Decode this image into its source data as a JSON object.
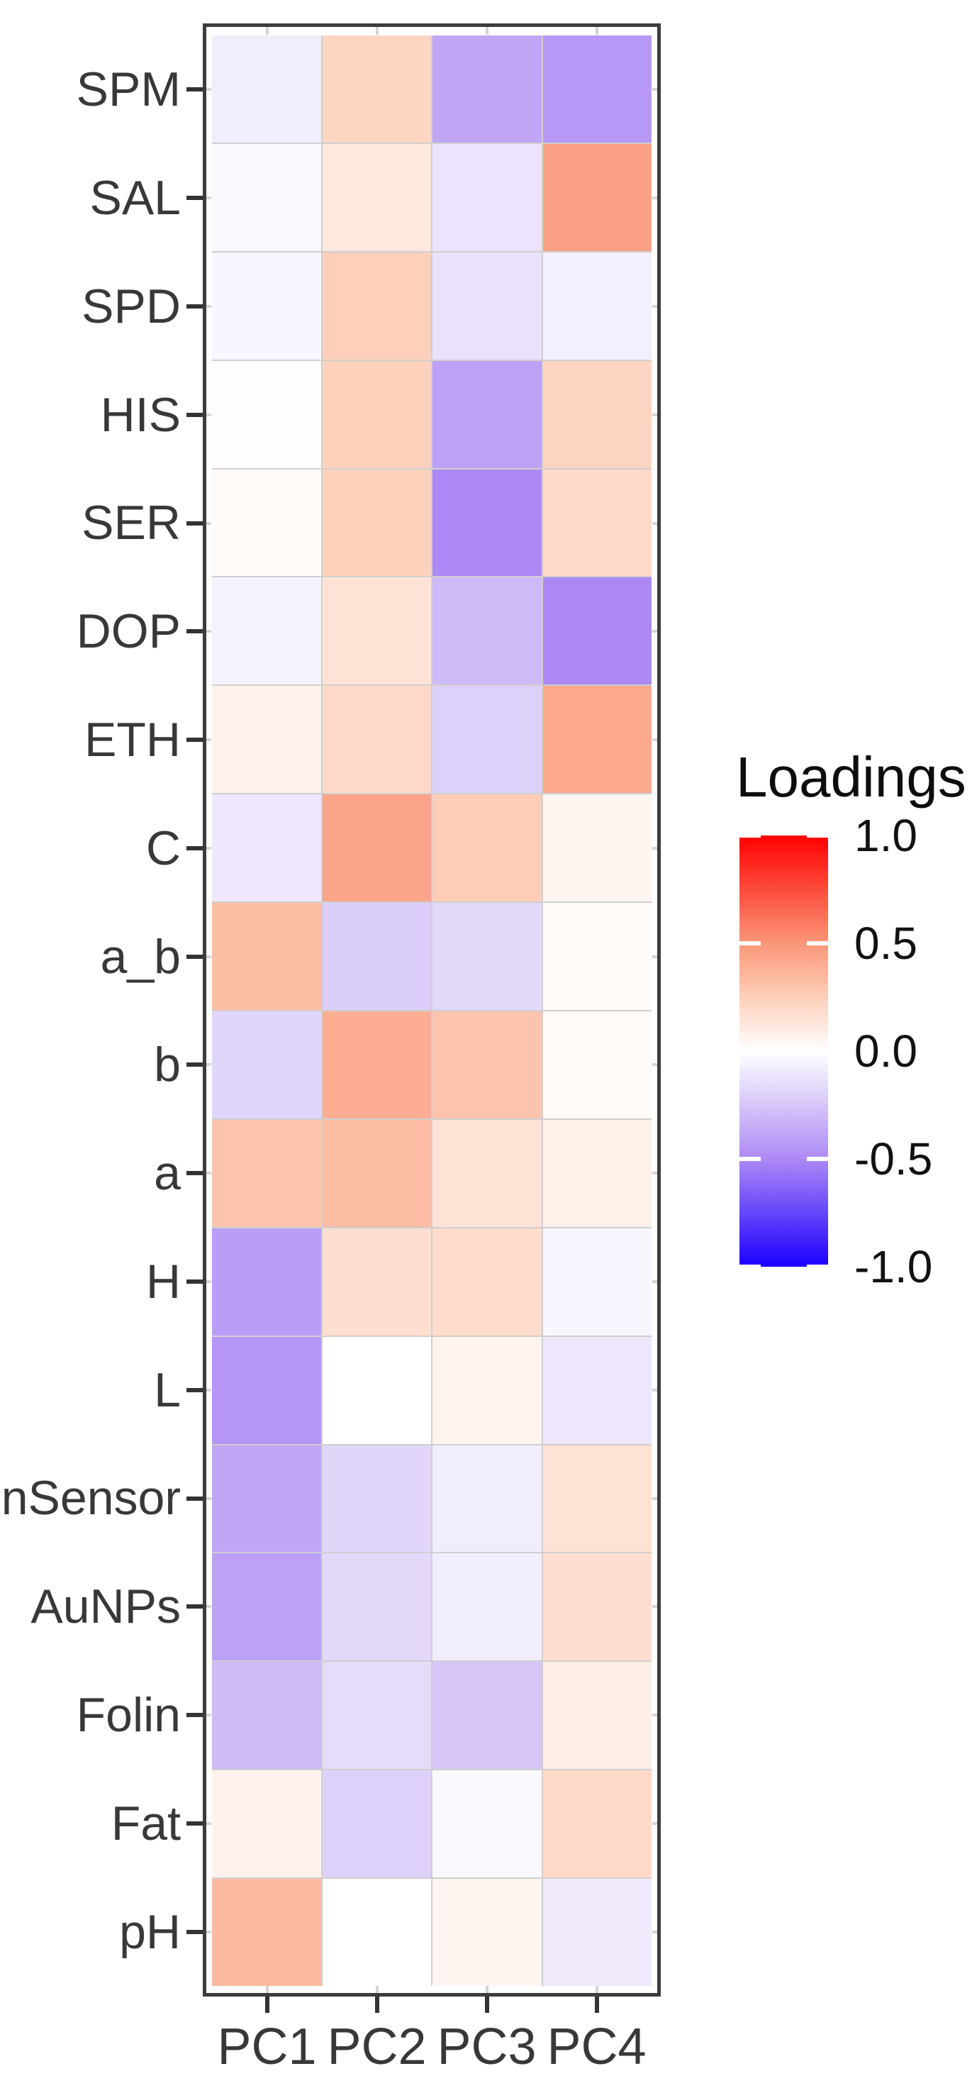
{
  "chart_data": {
    "type": "heatmap",
    "legend_title": "Loadings",
    "legend_position": "right",
    "columns": [
      "PC1",
      "PC2",
      "PC3",
      "PC4"
    ],
    "rows": [
      "SPM",
      "SAL",
      "SPD",
      "HIS",
      "SER",
      "DOP",
      "ETH",
      "C",
      "a_b",
      "b",
      "a",
      "H",
      "L",
      "nSensor",
      "AuNPs",
      "Folin",
      "Fat",
      "pH"
    ],
    "values": [
      [
        -0.08,
        0.22,
        -0.38,
        -0.44
      ],
      [
        -0.03,
        0.12,
        -0.12,
        0.45
      ],
      [
        -0.04,
        0.25,
        -0.13,
        -0.07
      ],
      [
        -0.01,
        0.24,
        -0.4,
        0.22
      ],
      [
        0.03,
        0.24,
        -0.5,
        0.2
      ],
      [
        -0.06,
        0.15,
        -0.3,
        -0.5
      ],
      [
        0.07,
        0.2,
        -0.2,
        0.42
      ],
      [
        -0.1,
        0.44,
        0.26,
        0.05
      ],
      [
        0.33,
        -0.22,
        -0.17,
        0.02
      ],
      [
        -0.18,
        0.4,
        0.3,
        0.03
      ],
      [
        0.3,
        0.33,
        0.15,
        0.08
      ],
      [
        -0.42,
        0.17,
        0.19,
        -0.04
      ],
      [
        -0.45,
        0.0,
        0.06,
        -0.1
      ],
      [
        -0.38,
        -0.18,
        -0.08,
        0.15
      ],
      [
        -0.4,
        -0.17,
        -0.08,
        0.17
      ],
      [
        -0.3,
        -0.16,
        -0.25,
        0.09
      ],
      [
        0.07,
        -0.2,
        -0.03,
        0.2
      ],
      [
        0.34,
        0.0,
        0.05,
        -0.09
      ]
    ],
    "scale": {
      "limits": [
        -1.0,
        1.0
      ],
      "tick_values": [
        1.0,
        0.5,
        0.0,
        -0.5,
        -1.0
      ],
      "tick_labels": [
        "1.0",
        "0.5",
        "0.0",
        "-0.5",
        "-1.0"
      ],
      "low_color": "#1c00ff",
      "mid_color": "#ffffff",
      "high_color": "#ff0000",
      "gradient_stops": [
        {
          "v": -1.0,
          "rgb": [
            28,
            0,
            255
          ]
        },
        {
          "v": -0.5,
          "rgb": [
            173,
            137,
            245
          ]
        },
        {
          "v": -0.25,
          "rgb": [
            214,
            198,
            248
          ]
        },
        {
          "v": 0.0,
          "rgb": [
            255,
            255,
            255
          ]
        },
        {
          "v": 0.25,
          "rgb": [
            254,
            207,
            186
          ]
        },
        {
          "v": 0.5,
          "rgb": [
            250,
            150,
            120
          ]
        },
        {
          "v": 1.0,
          "rgb": [
            255,
            0,
            0
          ]
        }
      ]
    },
    "grid": "light-gray lines between tiles",
    "panel_border_color": "#3c3c3c",
    "axis_text_color": "#383838"
  }
}
